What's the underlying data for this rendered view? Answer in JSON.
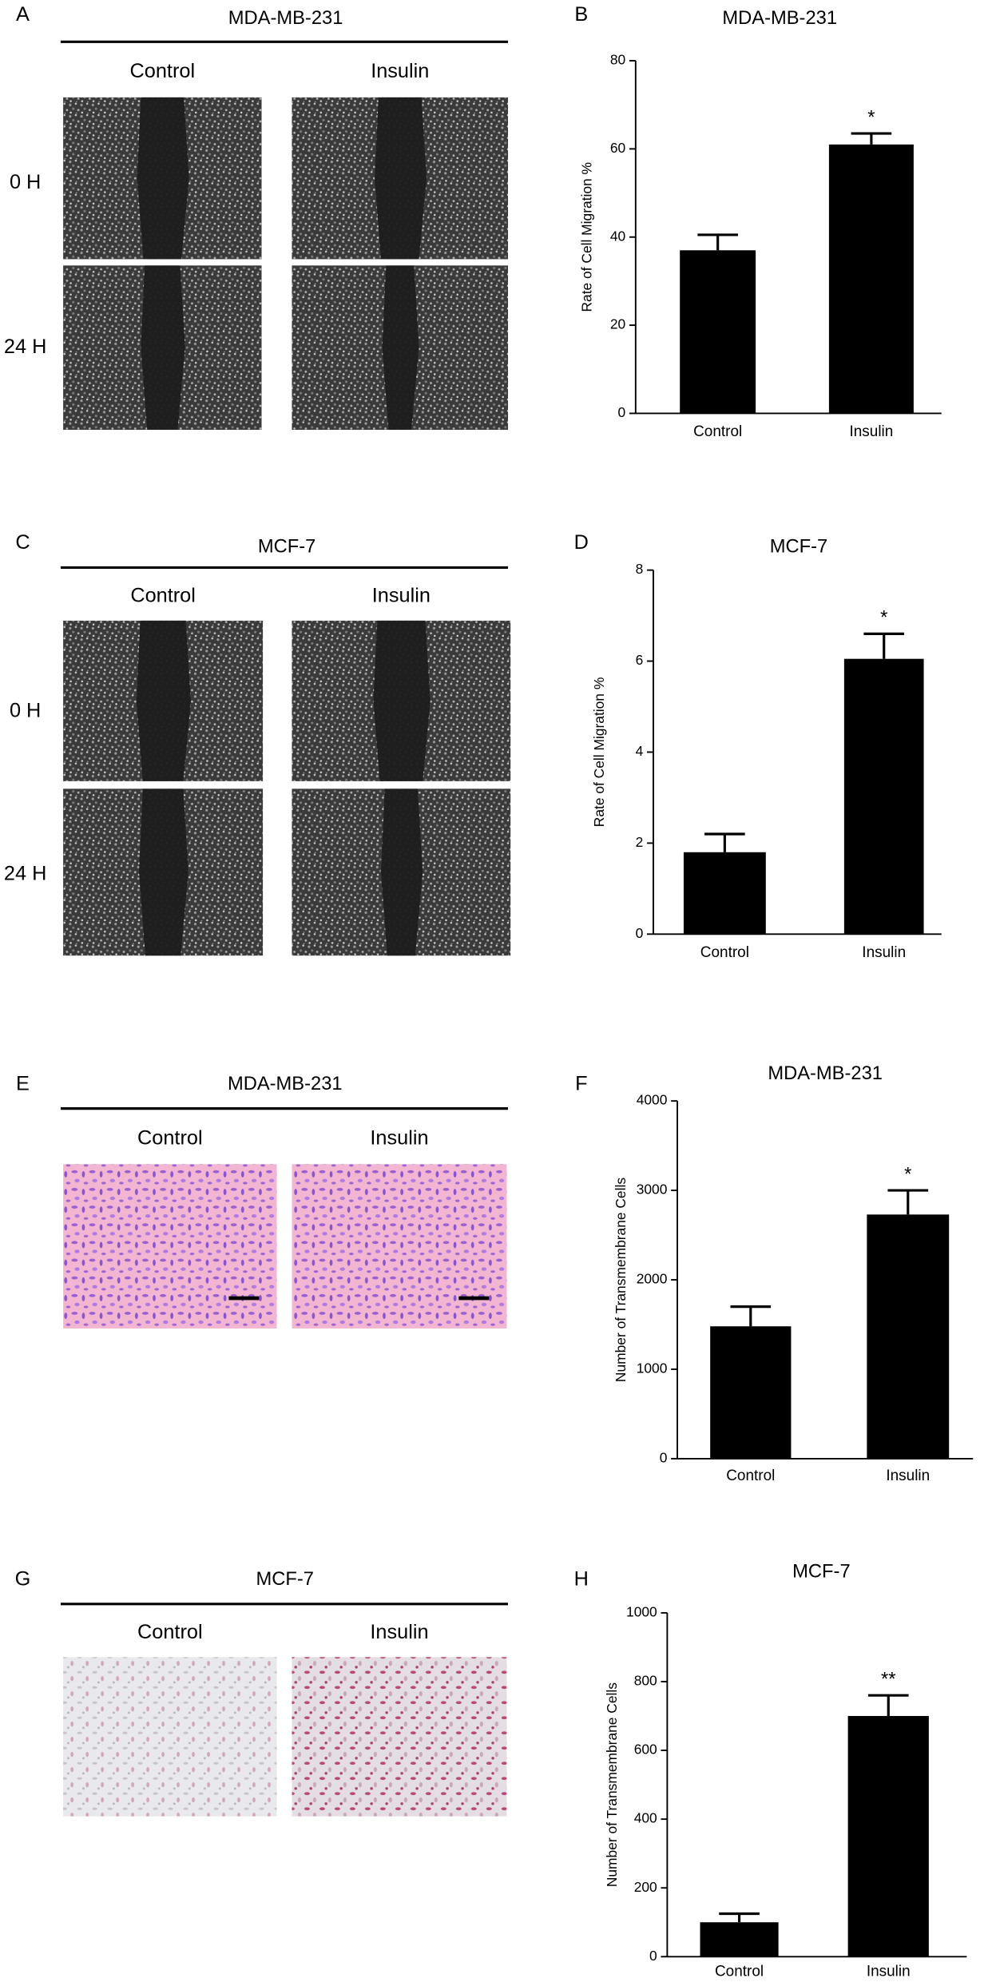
{
  "figure_panels": [
    {
      "label": "A",
      "title": "MDA-MB-231",
      "columns": [
        "Control",
        "Insulin"
      ],
      "rows": [
        "0 H",
        "24 H"
      ]
    },
    {
      "label": "C",
      "title": "MCF-7",
      "columns": [
        "Control",
        "Insulin"
      ],
      "rows": [
        "0 H",
        "24 H"
      ]
    },
    {
      "label": "E",
      "title": "MDA-MB-231",
      "columns": [
        "Control",
        "Insulin"
      ]
    },
    {
      "label": "G",
      "title": "MCF-7",
      "columns": [
        "Control",
        "Insulin"
      ]
    }
  ],
  "chart_data": [
    {
      "type": "bar",
      "panel_label": "B",
      "title": "MDA-MB-231",
      "y_label": "Rate of Cell Migration %",
      "categories": [
        "Control",
        "Insulin"
      ],
      "values": [
        37,
        61
      ],
      "errors": [
        3.5,
        2.5
      ],
      "annotation": "*",
      "color": "#000000",
      "ylim": [
        0,
        80
      ],
      "yticks": [
        0,
        20,
        40,
        60,
        80
      ]
    },
    {
      "type": "bar",
      "panel_label": "D",
      "title": "MCF-7",
      "y_label": "Rate of Cell Migration %",
      "categories": [
        "Control",
        "Insulin"
      ],
      "values": [
        1.8,
        6.05
      ],
      "errors": [
        0.4,
        0.55
      ],
      "annotation": "*",
      "color": "#000000",
      "ylim": [
        0,
        8
      ],
      "yticks": [
        0,
        2,
        4,
        6,
        8
      ]
    },
    {
      "type": "bar",
      "panel_label": "F",
      "title": "MDA-MB-231",
      "y_label": "Number of Transmembrane Cells",
      "categories": [
        "Control",
        "Insulin"
      ],
      "values": [
        1480,
        2730
      ],
      "errors": [
        220,
        270
      ],
      "annotation": "*",
      "color": "#000000",
      "ylim": [
        0,
        4000
      ],
      "yticks": [
        0,
        1000,
        2000,
        3000,
        4000
      ]
    },
    {
      "type": "bar",
      "panel_label": "H",
      "title": "MCF-7",
      "y_label": "Number of Transmembrane Cells",
      "categories": [
        "Control",
        "Insulin"
      ],
      "values": [
        100,
        700
      ],
      "errors": [
        25,
        60
      ],
      "annotation": "**",
      "color": "#000000",
      "ylim": [
        0,
        1000
      ],
      "yticks": [
        0,
        200,
        400,
        600,
        800,
        1000
      ]
    }
  ]
}
